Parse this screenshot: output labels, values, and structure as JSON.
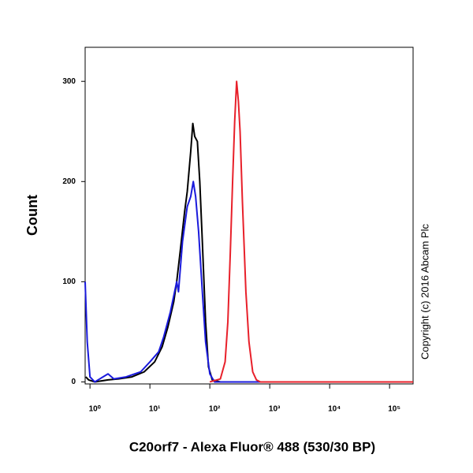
{
  "chart_data": {
    "type": "line",
    "y_label": "Count",
    "x_label": "C20orf7 - Alexa Fluor® 488 (530/30 BP)",
    "annotation": "Copyright (c) 2016 Abcam Plc",
    "x_log": true,
    "xlim": [
      0.83,
      247000
    ],
    "ylim": [
      -2,
      334
    ],
    "xticks": [
      {
        "value": 1,
        "label": "10⁰"
      },
      {
        "value": 10,
        "label": "10¹"
      },
      {
        "value": 100,
        "label": "10²"
      },
      {
        "value": 1000,
        "label": "10³"
      },
      {
        "value": 10000,
        "label": "10⁴"
      },
      {
        "value": 100000,
        "label": "10⁵"
      }
    ],
    "yticks": [
      0,
      100,
      200,
      300
    ],
    "series": [
      {
        "color": "#000000",
        "x": [
          0.85,
          0.95,
          1.2,
          2,
          3,
          5,
          8,
          12,
          16,
          20,
          25,
          28,
          32,
          38,
          42,
          48,
          52,
          56,
          62,
          68,
          75,
          85,
          95,
          110,
          150,
          247000
        ],
        "values": [
          5,
          2,
          0,
          2,
          3,
          5,
          10,
          20,
          35,
          55,
          80,
          100,
          130,
          170,
          190,
          230,
          258,
          245,
          240,
          200,
          140,
          60,
          15,
          2,
          0,
          0
        ]
      },
      {
        "color": "#1a1adc",
        "x": [
          0.83,
          0.9,
          1,
          1.2,
          2,
          2.5,
          4,
          7,
          10,
          14,
          17,
          22,
          28,
          30,
          35,
          42,
          48,
          53,
          58,
          65,
          75,
          85,
          100,
          120,
          247000
        ],
        "values": [
          100,
          40,
          5,
          0,
          8,
          3,
          5,
          10,
          20,
          30,
          45,
          70,
          100,
          90,
          140,
          175,
          185,
          200,
          185,
          150,
          90,
          40,
          8,
          0,
          0
        ]
      },
      {
        "color": "#e8202a",
        "x": [
          100,
          150,
          180,
          200,
          220,
          240,
          260,
          280,
          300,
          320,
          350,
          400,
          450,
          520,
          600,
          700,
          247000
        ],
        "values": [
          0,
          3,
          20,
          60,
          130,
          200,
          260,
          300,
          280,
          250,
          180,
          90,
          40,
          10,
          2,
          0,
          0
        ]
      }
    ]
  }
}
